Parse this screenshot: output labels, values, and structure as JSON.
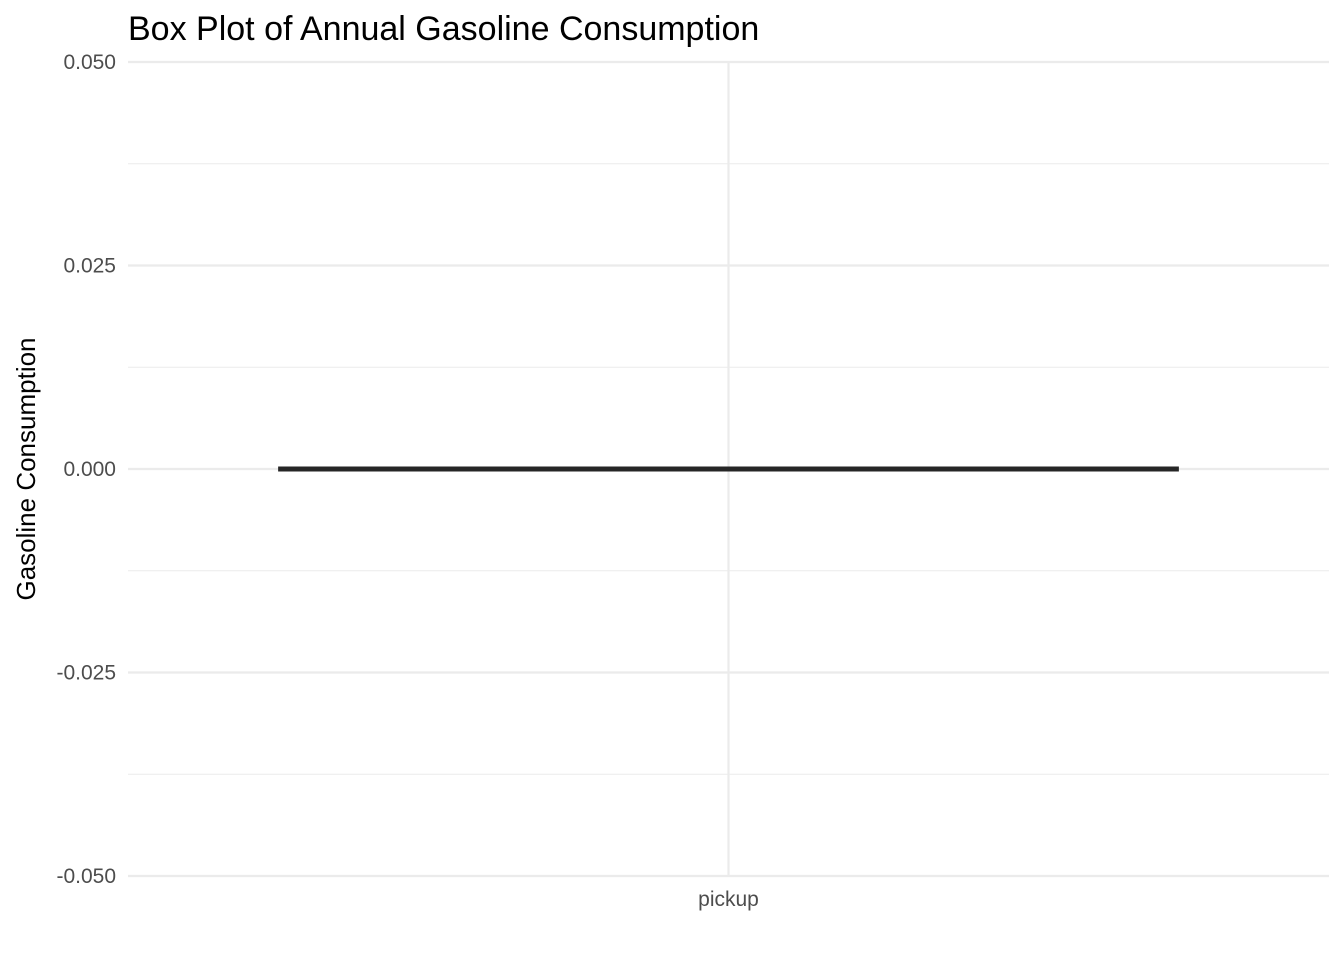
{
  "chart_data": {
    "type": "box",
    "title": "Box Plot of Annual Gasoline Consumption",
    "xlabel": "",
    "ylabel": "Gasoline Consumption",
    "categories": [
      "pickup"
    ],
    "boxes": [
      {
        "category": "pickup",
        "min": 0,
        "q1": 0,
        "median": 0,
        "q3": 0,
        "max": 0
      }
    ],
    "ylim": [
      -0.05,
      0.05
    ],
    "yticks": [
      -0.05,
      -0.025,
      0,
      0.025,
      0.05
    ],
    "ytick_labels": [
      "-0.050",
      "-0.025",
      "0.000",
      "0.025",
      "0.050"
    ],
    "grid": true,
    "colors": {
      "box_line": "#262626",
      "grid": "#ebebeb",
      "tick_text": "#4d4d4d"
    }
  }
}
